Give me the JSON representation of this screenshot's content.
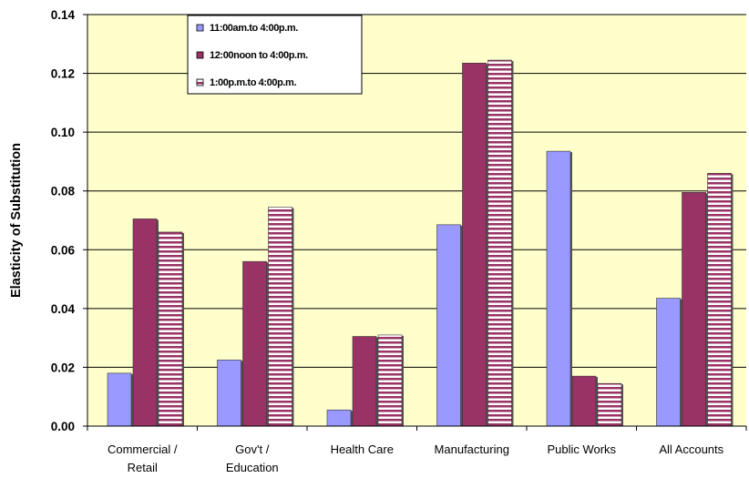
{
  "chart_data": {
    "type": "bar",
    "title": "",
    "xlabel": "",
    "ylabel": "Elasticity of Substitution",
    "ylim": [
      0,
      0.14
    ],
    "yticks": [
      "0.00",
      "0.02",
      "0.04",
      "0.06",
      "0.08",
      "0.10",
      "0.12",
      "0.14"
    ],
    "grid": true,
    "legend_position": "top-left",
    "categories": [
      [
        "Commercial /",
        "Retail"
      ],
      [
        "Gov't /",
        "Education"
      ],
      [
        "Health Care"
      ],
      [
        "Manufacturing"
      ],
      [
        "Public Works"
      ],
      [
        "All Accounts"
      ]
    ],
    "series": [
      {
        "name": "11:00am.to 4:00p.m.",
        "color": "#9999ff",
        "pattern": "solid",
        "values": [
          0.018,
          0.0225,
          0.0055,
          0.0685,
          0.0935,
          0.0435
        ]
      },
      {
        "name": "12:00noon to 4:00p.m.",
        "color": "#993366",
        "pattern": "solid",
        "values": [
          0.0705,
          0.056,
          0.0305,
          0.1235,
          0.017,
          0.0795
        ]
      },
      {
        "name": "1:00p.m.to 4:00p.m.",
        "color": "#993366",
        "pattern": "horizontal-stripes",
        "values": [
          0.066,
          0.0745,
          0.031,
          0.1245,
          0.0145,
          0.086
        ]
      }
    ],
    "colors": {
      "plot_background": "#ffffcc",
      "gridline": "#000000"
    }
  }
}
